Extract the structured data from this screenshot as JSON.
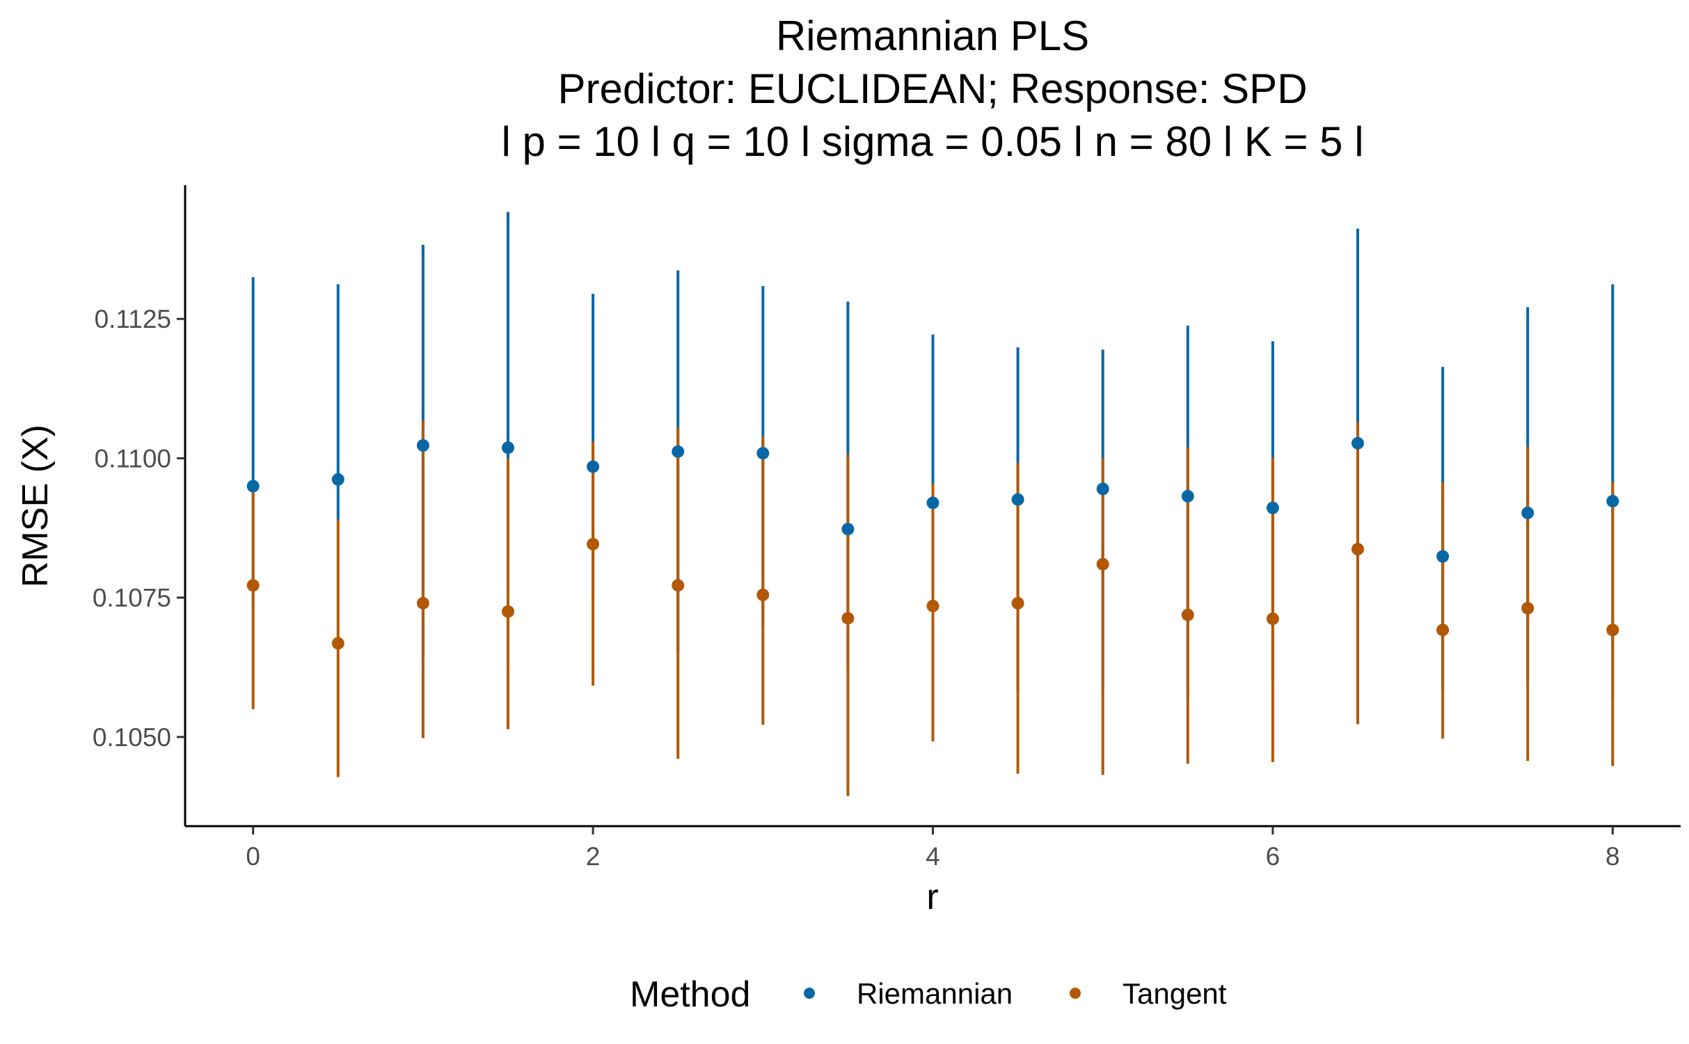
{
  "chart_data": {
    "type": "scatter",
    "title_lines": [
      "Riemannian PLS",
      "Predictor: EUCLIDEAN; Response: SPD",
      "l p = 10 l q = 10 l sigma = 0.05 l n = 80 l K = 5 l"
    ],
    "xlabel": "r",
    "ylabel": "RMSE (X)",
    "xlim": [
      -0.4,
      8.4
    ],
    "ylim": [
      0.1034,
      0.1149
    ],
    "x_ticks": [
      0,
      2,
      4,
      6,
      8
    ],
    "x_tick_labels": [
      "0",
      "2",
      "4",
      "6",
      "8"
    ],
    "y_ticks": [
      0.105,
      0.1075,
      0.11,
      0.1125
    ],
    "y_tick_labels": [
      "0.1050",
      "0.1075",
      "0.1100",
      "0.1125"
    ],
    "grid": false,
    "legend": {
      "title": "Method",
      "position": "bottom"
    },
    "series": [
      {
        "name": "Riemannian",
        "color": "#0868a6",
        "points": [
          {
            "x": 0,
            "y": 0.1095,
            "low": 0.1073,
            "high": 0.11325
          },
          {
            "x": 0.5,
            "y": 0.10962,
            "low": 0.1089,
            "high": 0.11312
          },
          {
            "x": 1,
            "y": 0.11023,
            "low": 0.1064,
            "high": 0.11383
          },
          {
            "x": 1.5,
            "y": 0.11019,
            "low": 0.1062,
            "high": 0.11442
          },
          {
            "x": 2,
            "y": 0.10985,
            "low": 0.1075,
            "high": 0.11295
          },
          {
            "x": 2.5,
            "y": 0.11012,
            "low": 0.1065,
            "high": 0.11337
          },
          {
            "x": 3,
            "y": 0.11009,
            "low": 0.107,
            "high": 0.11309
          },
          {
            "x": 3.5,
            "y": 0.10873,
            "low": 0.1062,
            "high": 0.11281
          },
          {
            "x": 4,
            "y": 0.1092,
            "low": 0.1062,
            "high": 0.11222
          },
          {
            "x": 4.5,
            "y": 0.10926,
            "low": 0.1058,
            "high": 0.11199
          },
          {
            "x": 5,
            "y": 0.10945,
            "low": 0.1059,
            "high": 0.11195
          },
          {
            "x": 5.5,
            "y": 0.10932,
            "low": 0.1057,
            "high": 0.11238
          },
          {
            "x": 6,
            "y": 0.10911,
            "low": 0.106,
            "high": 0.1121
          },
          {
            "x": 6.5,
            "y": 0.11027,
            "low": 0.1074,
            "high": 0.11412
          },
          {
            "x": 7,
            "y": 0.10824,
            "low": 0.1058,
            "high": 0.11164
          },
          {
            "x": 7.5,
            "y": 0.10902,
            "low": 0.106,
            "high": 0.11271
          },
          {
            "x": 8,
            "y": 0.10923,
            "low": 0.1057,
            "high": 0.11312
          }
        ]
      },
      {
        "name": "Tangent",
        "color": "#b35806",
        "points": [
          {
            "x": 0,
            "y": 0.10772,
            "low": 0.1055,
            "high": 0.1094
          },
          {
            "x": 0.5,
            "y": 0.10668,
            "low": 0.10428,
            "high": 0.1089
          },
          {
            "x": 1,
            "y": 0.1074,
            "low": 0.10498,
            "high": 0.11068
          },
          {
            "x": 1.5,
            "y": 0.10725,
            "low": 0.10514,
            "high": 0.11
          },
          {
            "x": 2,
            "y": 0.10846,
            "low": 0.10592,
            "high": 0.1103
          },
          {
            "x": 2.5,
            "y": 0.10772,
            "low": 0.10461,
            "high": 0.11055
          },
          {
            "x": 3,
            "y": 0.10755,
            "low": 0.10522,
            "high": 0.1104
          },
          {
            "x": 3.5,
            "y": 0.10713,
            "low": 0.10394,
            "high": 0.11007
          },
          {
            "x": 4,
            "y": 0.10735,
            "low": 0.10492,
            "high": 0.10955
          },
          {
            "x": 4.5,
            "y": 0.1074,
            "low": 0.10434,
            "high": 0.10992
          },
          {
            "x": 5,
            "y": 0.1081,
            "low": 0.10432,
            "high": 0.11
          },
          {
            "x": 5.5,
            "y": 0.10719,
            "low": 0.10452,
            "high": 0.1102
          },
          {
            "x": 6,
            "y": 0.10712,
            "low": 0.10455,
            "high": 0.11
          },
          {
            "x": 6.5,
            "y": 0.10837,
            "low": 0.10523,
            "high": 0.11065
          },
          {
            "x": 7,
            "y": 0.10692,
            "low": 0.10497,
            "high": 0.10957
          },
          {
            "x": 7.5,
            "y": 0.10731,
            "low": 0.10457,
            "high": 0.11021
          },
          {
            "x": 8,
            "y": 0.10692,
            "low": 0.10448,
            "high": 0.10957
          }
        ]
      }
    ]
  }
}
